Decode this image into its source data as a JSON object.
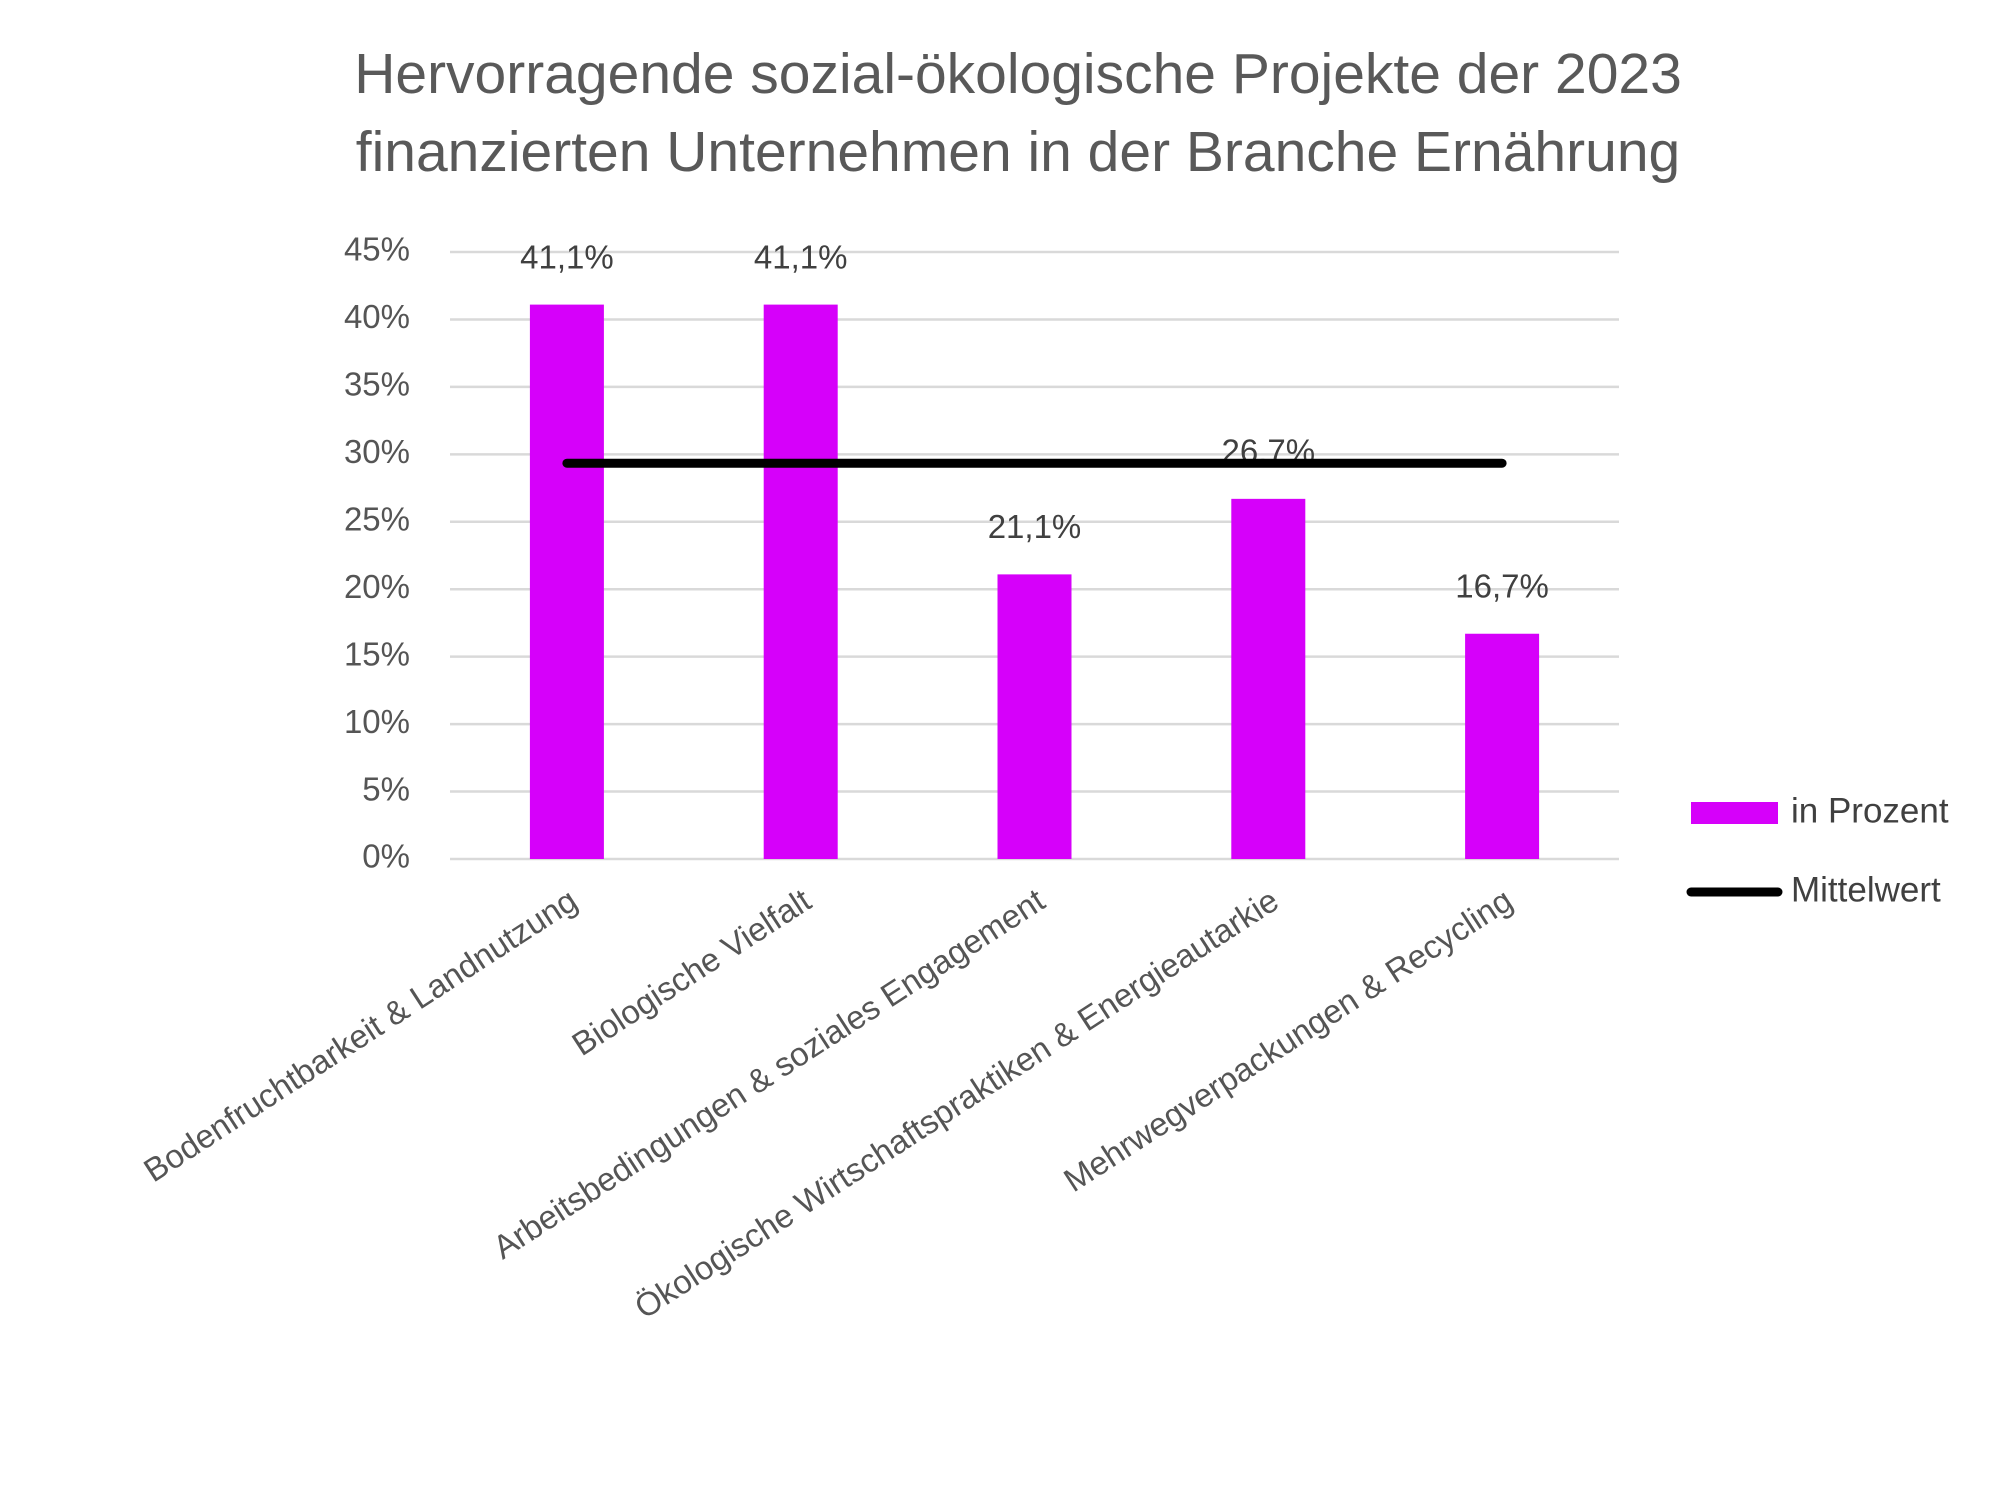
{
  "chart_data": {
    "type": "bar",
    "title": [
      "Hervorragende sozial-ökologische Projekte der 2023",
      "finanzierten Unternehmen in der Branche Ernährung"
    ],
    "categories": [
      "Bodenfruchtbarkeit & Landnutzung",
      "Biologische Vielfalt",
      "Arbeitsbedingungen & soziales Engagement",
      "Ökologische Wirtschaftspraktiken & Energieautarkie",
      "Mehrwegverpackungen & Recycling"
    ],
    "series": [
      {
        "name": "in Prozent",
        "type": "bar",
        "color": "#d600fa",
        "values": [
          41.1,
          41.1,
          21.1,
          26.7,
          16.7
        ],
        "value_labels": [
          "41,1%",
          "41,1%",
          "21,1%",
          "26,7%",
          "16,7%"
        ]
      },
      {
        "name": "Mittelwert",
        "type": "line",
        "color": "#000000",
        "values": [
          29.34,
          29.34,
          29.34,
          29.34,
          29.34
        ]
      }
    ],
    "ylim": [
      0,
      45
    ],
    "yticks": [
      {
        "value": 0,
        "label": "0%"
      },
      {
        "value": 5,
        "label": "5%"
      },
      {
        "value": 10,
        "label": "10%"
      },
      {
        "value": 15,
        "label": "15%"
      },
      {
        "value": 20,
        "label": "20%"
      },
      {
        "value": 25,
        "label": "25%"
      },
      {
        "value": 30,
        "label": "30%"
      },
      {
        "value": 35,
        "label": "35%"
      },
      {
        "value": 40,
        "label": "40%"
      },
      {
        "value": 45,
        "label": "45%"
      }
    ],
    "grid": true,
    "legend": "right"
  }
}
